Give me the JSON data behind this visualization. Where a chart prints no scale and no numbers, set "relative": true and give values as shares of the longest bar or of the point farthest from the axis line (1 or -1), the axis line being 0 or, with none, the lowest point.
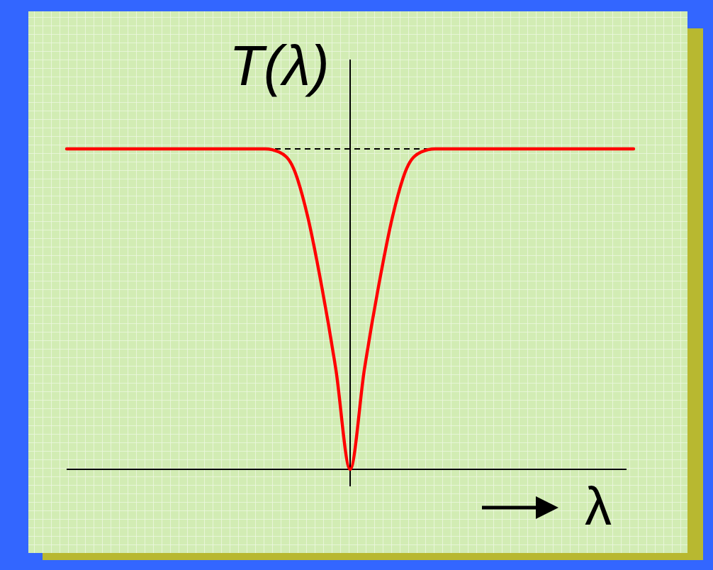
{
  "chart_data": {
    "type": "line",
    "relative": true,
    "ylabel": "T(λ)",
    "xlabel": "λ",
    "marker": "none",
    "line_style": "solid",
    "categories": [
      null,
      null,
      null,
      null,
      null,
      null,
      null,
      null,
      null,
      null,
      null,
      null,
      null,
      null,
      null,
      null,
      null,
      null,
      null,
      null,
      null,
      null,
      null,
      null,
      null,
      null,
      null,
      null,
      null,
      null,
      null,
      null,
      null,
      null,
      null,
      null,
      null,
      null,
      null,
      null,
      null
    ],
    "series": [
      {
        "color": "#ff0000",
        "values": [
          1,
          1,
          1,
          1,
          1,
          1,
          1,
          1,
          1,
          1,
          1,
          1,
          1,
          1,
          1,
          0.99,
          0.94,
          0.79,
          0.57,
          0.31,
          0,
          0.31,
          0.57,
          0.79,
          0.94,
          0.99,
          1,
          1,
          1,
          1,
          1,
          1,
          1,
          1,
          1,
          1,
          1,
          1,
          1,
          1,
          1
        ]
      }
    ],
    "ref_lines": [
      {
        "axis": "y",
        "value": 1,
        "color": "#000000",
        "line_style": "dashed"
      }
    ]
  }
}
